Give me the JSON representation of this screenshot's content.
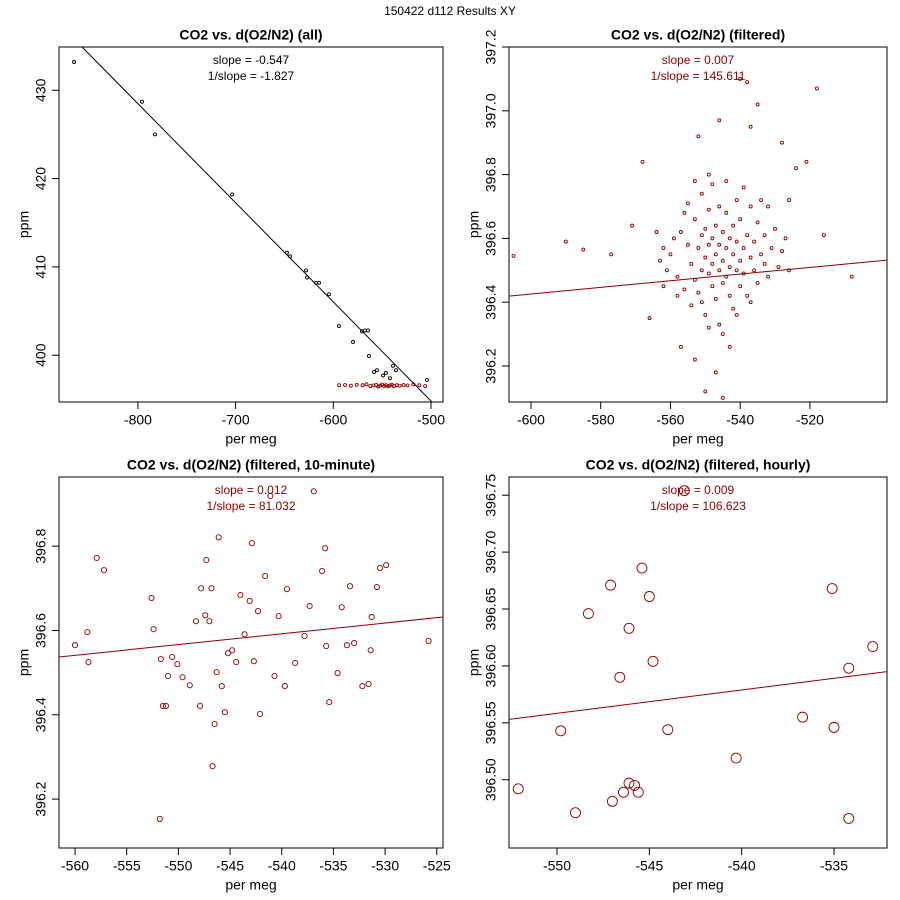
{
  "page_title": "150422   d112   Results XY",
  "chart_data": [
    {
      "type": "scatter",
      "title": "CO2 vs. d(O2/N2) (all)",
      "xlabel": "per meg",
      "ylabel": "ppm",
      "annotations": [
        "slope = -0.547",
        "1/slope = -1.827"
      ],
      "annotation_color": "#000000",
      "xlim": [
        -880.8,
        -487.7
      ],
      "ylim": [
        394.7,
        434.9
      ],
      "xticks": [
        -800,
        -700,
        -600,
        -500
      ],
      "yticks": [
        400,
        410,
        420,
        430
      ],
      "series": [
        {
          "color": "#000000",
          "x": [
            -865.4,
            -795.8,
            -782.5,
            -703.7,
            -647.4,
            -644.3,
            -627.9,
            -626.9,
            -617.7,
            -614.6,
            -604.4,
            -594.2,
            -579.8,
            -570.6,
            -567.6,
            -564.5,
            -563.5,
            -558.3,
            -555.3,
            -549.1,
            -546.1,
            -542.0,
            -538.9,
            -535.8,
            -504.1
          ],
          "y": [
            433.2,
            428.7,
            425.0,
            418.2,
            411.6,
            411.2,
            409.6,
            408.8,
            408.2,
            408.2,
            406.9,
            403.3,
            401.5,
            402.7,
            402.8,
            402.8,
            399.9,
            398.1,
            398.3,
            397.7,
            398.0,
            397.4,
            398.8,
            398.3,
            397.2
          ]
        },
        {
          "color": "#8b0000",
          "x": [
            -594,
            -588,
            -582,
            -576,
            -570,
            -566,
            -562,
            -559,
            -556,
            -554,
            -552,
            -550,
            -548,
            -546,
            -544,
            -542,
            -540,
            -538,
            -535,
            -532,
            -528,
            -524,
            -518,
            -512,
            -506
          ],
          "y": [
            396.6,
            396.62,
            396.55,
            396.65,
            396.6,
            396.7,
            396.5,
            396.58,
            396.63,
            396.45,
            396.55,
            396.68,
            396.52,
            396.6,
            396.48,
            396.57,
            396.66,
            396.5,
            396.6,
            396.55,
            396.62,
            396.58,
            396.7,
            396.6,
            396.5
          ]
        }
      ],
      "fit_line": {
        "color": "#000000",
        "x": [
          -857.2,
          -499
        ],
        "y": [
          434.9,
          394.7
        ]
      }
    },
    {
      "type": "scatter",
      "title": "CO2 vs. d(O2/N2) (filtered)",
      "xlabel": "per meg",
      "ylabel": "ppm",
      "annotations": [
        "slope = 0.007",
        "1/slope = 145.611"
      ],
      "annotation_color": "#8b0000",
      "xlim": [
        -606.3,
        -497.9
      ],
      "ylim": [
        396.087,
        397.2
      ],
      "xticks": [
        -600,
        -580,
        -560,
        -540,
        -520
      ],
      "yticks": [
        396.2,
        396.4,
        396.6,
        396.8,
        {
          "value": 397,
          "label": "397.0"
        },
        397.2
      ],
      "series": [
        {
          "color": "#8b0000",
          "x": [
            -605,
            -590,
            -585,
            -577,
            -571,
            -568,
            -566,
            -521,
            -518,
            -516,
            -508,
            -540,
            -538,
            -535,
            -545,
            -550,
            -547,
            -553,
            -557,
            -543,
            -562,
            -524,
            -526,
            -528,
            -537,
            -546,
            -552,
            -560,
            -558,
            -557,
            -556,
            -555,
            -555,
            -554,
            -554,
            -553,
            -553,
            -552,
            -552,
            -551,
            -551,
            -551,
            -550,
            -550,
            -550,
            -549,
            -549,
            -549,
            -548,
            -548,
            -548,
            -548,
            -547,
            -547,
            -547,
            -546,
            -546,
            -546,
            -546,
            -545,
            -545,
            -545,
            -544,
            -544,
            -544,
            -543,
            -543,
            -543,
            -542,
            -542,
            -542,
            -541,
            -541,
            -541,
            -540,
            -540,
            -540,
            -539,
            -539,
            -538,
            -538,
            -537,
            -537,
            -536,
            -536,
            -535,
            -535,
            -534,
            -533,
            -533,
            -532,
            -531,
            -530,
            -529,
            -528,
            -527,
            -526,
            -559,
            -561,
            -562,
            -563,
            -564,
            -556,
            -553,
            -549,
            -544,
            -539,
            -534,
            -545,
            -549,
            -541,
            -551,
            -537,
            -532,
            -558
          ],
          "y": [
            396.545,
            396.59,
            396.565,
            396.55,
            396.64,
            396.84,
            396.35,
            396.84,
            397.07,
            396.61,
            396.48,
            397.1,
            397.09,
            397.02,
            396.1,
            396.12,
            396.18,
            396.22,
            396.26,
            396.26,
            396.45,
            396.82,
            396.72,
            396.9,
            396.95,
            396.97,
            396.92,
            396.55,
            396.48,
            396.62,
            396.44,
            396.58,
            396.71,
            396.52,
            396.39,
            396.66,
            396.47,
            396.57,
            396.43,
            396.61,
            396.5,
            396.74,
            396.54,
            396.36,
            396.63,
            396.49,
            396.58,
            396.69,
            396.52,
            396.45,
            396.6,
            396.77,
            396.55,
            396.41,
            396.64,
            396.5,
            396.58,
            396.33,
            396.7,
            396.53,
            396.46,
            396.62,
            396.57,
            396.48,
            396.68,
            396.51,
            396.6,
            396.42,
            396.55,
            396.64,
            396.38,
            396.5,
            396.59,
            396.72,
            396.53,
            396.45,
            396.66,
            396.57,
            396.49,
            396.61,
            396.42,
            396.54,
            396.7,
            396.5,
            396.59,
            396.46,
            396.65,
            396.55,
            396.52,
            396.61,
            396.48,
            396.57,
            396.63,
            396.51,
            396.56,
            396.6,
            396.5,
            396.6,
            396.5,
            396.57,
            396.53,
            396.62,
            396.68,
            396.78,
            396.8,
            396.78,
            396.76,
            396.72,
            396.3,
            396.32,
            396.36,
            396.4,
            396.4,
            396.7,
            396.42
          ]
        }
      ],
      "fit_line": {
        "color": "#8b0000",
        "x": [
          -606.3,
          -497.9
        ],
        "y": [
          396.419,
          396.532
        ]
      }
    },
    {
      "type": "scatter",
      "title": "CO2 vs. d(O2/N2) (filtered, 10-minute)",
      "xlabel": "per meg",
      "ylabel": "ppm",
      "annotations": [
        "slope = 0.012",
        "1/slope = 81.032"
      ],
      "annotation_color": "#8b0000",
      "xlim": [
        -561.55,
        -524.4
      ],
      "ylim": [
        396.084,
        396.964
      ],
      "xticks": [
        -560,
        -555,
        -550,
        -545,
        -540,
        -535,
        -530,
        -525
      ],
      "yticks": [
        396.2,
        396.4,
        396.6,
        396.8
      ],
      "series": [
        {
          "color": "#8b0000",
          "x": [
            -560.0,
            -558.8,
            -558.7,
            -557.9,
            -557.2,
            -552.6,
            -552.4,
            -551.8,
            -551.7,
            -551.5,
            -551.2,
            -551.0,
            -550.6,
            -550.1,
            -549.6,
            -548.9,
            -548.3,
            -547.9,
            -547.8,
            -547.4,
            -547.3,
            -547.0,
            -546.8,
            -546.7,
            -546.5,
            -546.3,
            -546.1,
            -545.8,
            -545.5,
            -545.2,
            -544.8,
            -544.4,
            -544.0,
            -543.6,
            -543.1,
            -542.9,
            -542.7,
            -542.3,
            -542.1,
            -541.6,
            -541.1,
            -540.7,
            -540.3,
            -539.7,
            -539.5,
            -538.7,
            -537.8,
            -537.3,
            -536.9,
            -536.1,
            -535.8,
            -535.7,
            -535.4,
            -534.6,
            -534.2,
            -533.7,
            -533.4,
            -533.0,
            -532.2,
            -531.6,
            -531.4,
            -531.3,
            -530.8,
            -530.5,
            -529.9,
            -525.8
          ],
          "y": [
            396.565,
            396.596,
            396.525,
            396.772,
            396.743,
            396.677,
            396.603,
            396.153,
            396.532,
            396.421,
            396.421,
            396.492,
            396.537,
            396.52,
            396.489,
            396.47,
            396.622,
            396.421,
            396.7,
            396.636,
            396.767,
            396.622,
            396.7,
            396.278,
            396.378,
            396.501,
            396.821,
            396.468,
            396.406,
            396.546,
            396.553,
            396.525,
            396.684,
            396.591,
            396.67,
            396.807,
            396.527,
            396.646,
            396.402,
            396.729,
            396.919,
            396.492,
            396.634,
            396.468,
            396.698,
            396.523,
            396.587,
            396.658,
            396.93,
            396.741,
            396.795,
            396.563,
            396.43,
            396.499,
            396.655,
            396.565,
            396.705,
            396.57,
            396.468,
            396.473,
            396.553,
            396.632,
            396.703,
            396.748,
            396.755,
            396.575
          ]
        }
      ],
      "fit_line": {
        "color": "#8b0000",
        "x": [
          -561.55,
          -524.4
        ],
        "y": [
          396.537,
          396.632
        ]
      }
    },
    {
      "type": "scatter",
      "title": "CO2 vs. d(O2/N2) (filtered, hourly)",
      "xlabel": "per meg",
      "ylabel": "ppm",
      "annotations": [
        "slope = 0.009",
        "1/slope = 106.623"
      ],
      "annotation_color": "#8b0000",
      "xlim": [
        -552.6,
        -532.13
      ],
      "ylim": [
        396.44,
        396.766
      ],
      "xticks": [
        -550,
        -545,
        -540,
        -535
      ],
      "yticks": [
        {
          "value": 396.5,
          "label": "396.50"
        },
        396.55,
        {
          "value": 396.6,
          "label": "396.60"
        },
        396.65,
        {
          "value": 396.7,
          "label": "396.70"
        },
        396.75
      ],
      "series": [
        {
          "color": "#8b0000",
          "x": [
            -552.1,
            -549.8,
            -549.0,
            -548.3,
            -547.1,
            -547.0,
            -546.6,
            -546.4,
            -546.1,
            -546.1,
            -545.8,
            -545.6,
            -545.4,
            -545.0,
            -544.8,
            -544.0,
            -543.1,
            -540.3,
            -536.7,
            -535.1,
            -535.0,
            -534.2,
            -534.2,
            -532.9
          ],
          "y": [
            396.492,
            396.543,
            396.471,
            396.646,
            396.671,
            396.481,
            396.59,
            396.489,
            396.497,
            396.633,
            396.495,
            396.489,
            396.686,
            396.661,
            396.604,
            396.544,
            396.754,
            396.519,
            396.555,
            396.668,
            396.546,
            396.598,
            396.466,
            396.617
          ]
        }
      ],
      "fit_line": {
        "color": "#8b0000",
        "x": [
          -552.6,
          -532.13
        ],
        "y": [
          396.553,
          396.595
        ]
      }
    }
  ]
}
